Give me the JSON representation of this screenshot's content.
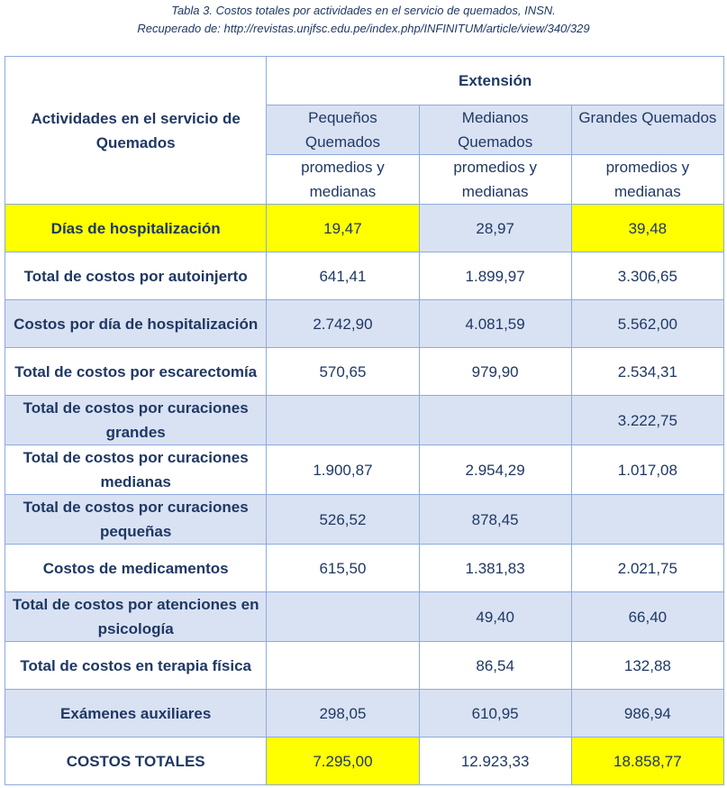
{
  "caption": {
    "line1": "Tabla 3. Costos totales por actividades en el servicio de quemados, INSN.",
    "line2": "Recuperado de: http://revistas.unjfsc.edu.pe/index.php/INFINITUM/article/view/340/329"
  },
  "table": {
    "activity_header": "Actividades en el servicio de Quemados",
    "extension_header": "Extensión",
    "columns": [
      {
        "name": "Pequeños Quemados",
        "sub": "promedios y medianas"
      },
      {
        "name": "Medianos Quemados",
        "sub": "promedios y medianas"
      },
      {
        "name": "Grandes Quemados",
        "sub": "promedios y medianas"
      }
    ],
    "rows": [
      {
        "label": "Días de hospitalización",
        "values": [
          "19,47",
          "28,97",
          "39,48"
        ]
      },
      {
        "label": "Total de costos por autoinjerto",
        "values": [
          "641,41",
          "1.899,97",
          "3.306,65"
        ]
      },
      {
        "label": "Costos por día de hospitalización",
        "values": [
          "2.742,90",
          "4.081,59",
          "5.562,00"
        ]
      },
      {
        "label": "Total de costos por escarectomía",
        "values": [
          "570,65",
          "979,90",
          "2.534,31"
        ]
      },
      {
        "label": "Total de costos por curaciones grandes",
        "values": [
          "",
          "",
          "3.222,75"
        ]
      },
      {
        "label": "Total de costos por curaciones medianas",
        "values": [
          "1.900,87",
          "2.954,29",
          "1.017,08"
        ]
      },
      {
        "label": "Total de costos por curaciones pequeñas",
        "values": [
          "526,52",
          "878,45",
          ""
        ]
      },
      {
        "label": "Costos de medicamentos",
        "values": [
          "615,50",
          "1.381,83",
          "2.021,75"
        ]
      },
      {
        "label": "Total de costos por atenciones en psicología",
        "values": [
          "",
          "49,40",
          "66,40"
        ]
      },
      {
        "label": "Total de costos en terapia física",
        "values": [
          "",
          "86,54",
          "132,88"
        ]
      },
      {
        "label": "Exámenes auxiliares",
        "values": [
          "298,05",
          "610,95",
          "986,94"
        ]
      },
      {
        "label": "COSTOS TOTALES",
        "values": [
          "7.295,00",
          "12.923,33",
          "18.858,77"
        ]
      }
    ],
    "highlight_color": "#FFFF00",
    "band_color": "#D9E2F3"
  }
}
